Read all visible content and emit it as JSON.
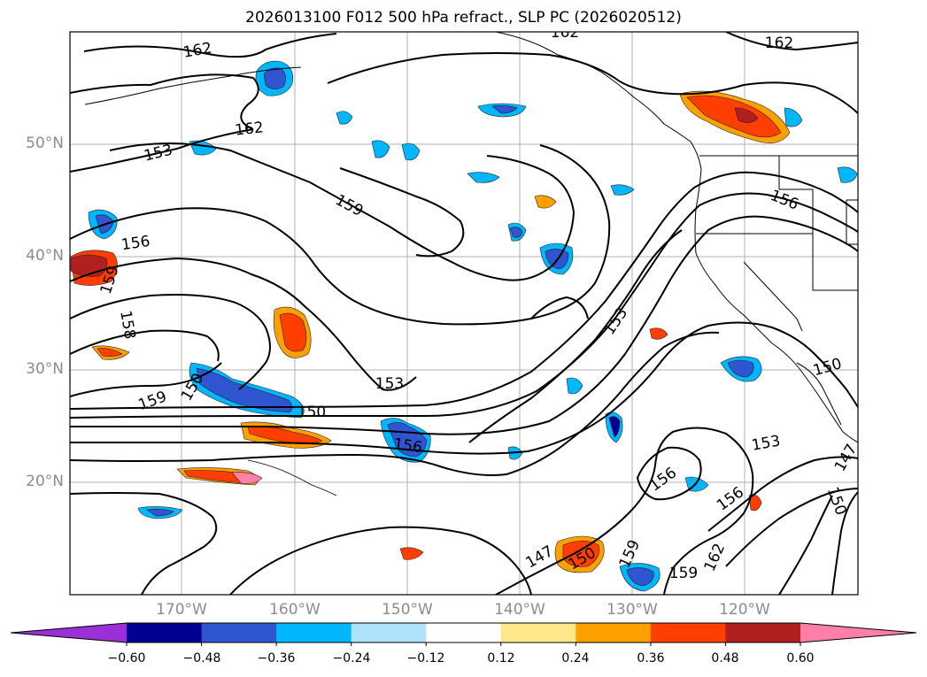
{
  "title": "2026013100 F012 500 hPa refract., SLP PC (2026020512)",
  "lat_labels": [
    "50°N",
    "40°N",
    "30°N",
    "20°N"
  ],
  "lon_labels": [
    "170°W",
    "160°W",
    "150°W",
    "140°W",
    "130°W",
    "120°W"
  ],
  "contour_labels": [
    "162",
    "162",
    "162",
    "162",
    "159",
    "156",
    "159",
    "158",
    "159",
    "150",
    "150",
    "153",
    "156",
    "153",
    "150",
    "156",
    "156",
    "153",
    "147",
    "150",
    "159",
    "159",
    "162",
    "156",
    "150",
    "153",
    "147"
  ],
  "colorbar": {
    "ticks": [
      "−0.60",
      "−0.48",
      "−0.36",
      "−0.24",
      "−0.12",
      "0.12",
      "0.24",
      "0.36",
      "0.48",
      "0.60"
    ],
    "colors": [
      "#9b30d9",
      "#000090",
      "#2f55d0",
      "#00b6ff",
      "#aee1fb",
      "#ffffff",
      "#ffe88c",
      "#ff9f00",
      "#ff3e00",
      "#b21f1f",
      "#ff7fa8"
    ]
  }
}
